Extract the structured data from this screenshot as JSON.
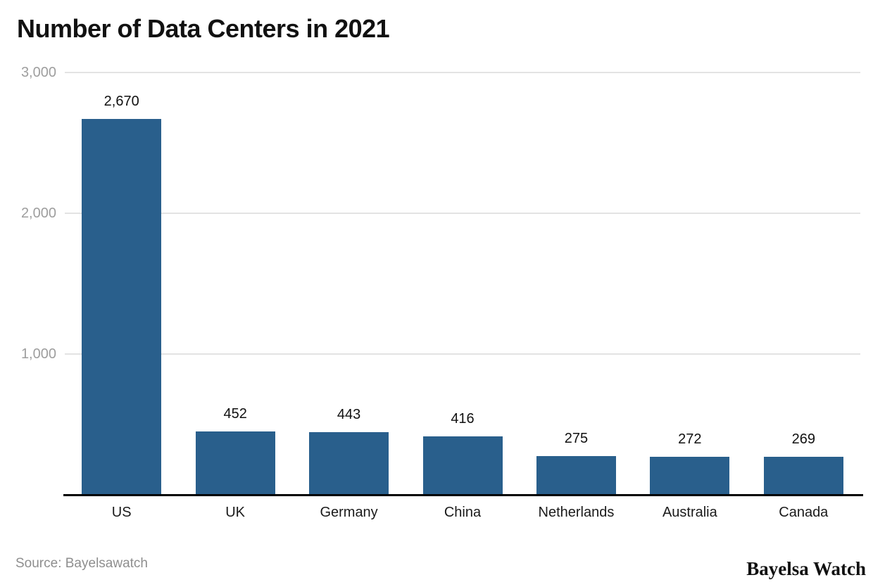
{
  "title": "Number of Data Centers in 2021",
  "source_note": "Source: Bayelsawatch",
  "brand": "Bayelsa Watch",
  "colors": {
    "bar": "#295F8C",
    "gridline": "#E3E3E3",
    "tick_label": "#9E9E9E",
    "axis_line": "#000000",
    "label_text": "#111111",
    "source_text": "#8E8E8E"
  },
  "chart_data": {
    "type": "bar",
    "title": "Number of Data Centers in 2021",
    "categories": [
      "US",
      "UK",
      "Germany",
      "China",
      "Netherlands",
      "Australia",
      "Canada"
    ],
    "values": [
      2670,
      452,
      443,
      416,
      275,
      272,
      269
    ],
    "value_labels": [
      "2,670",
      "452",
      "443",
      "416",
      "275",
      "272",
      "269"
    ],
    "xlabel": "",
    "ylabel": "",
    "ylim": [
      0,
      3000
    ],
    "yticks": [
      1000,
      2000,
      3000
    ],
    "ytick_labels": [
      "1,000",
      "2,000",
      "3,000"
    ],
    "grid": true,
    "legend": false,
    "bar_color": "#295F8C"
  }
}
